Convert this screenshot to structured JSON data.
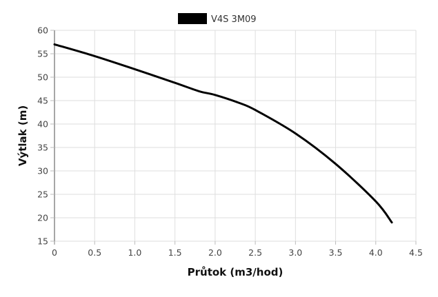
{
  "chart_data": {
    "type": "line",
    "title": "",
    "legend": {
      "position": "top",
      "entries": [
        "V4S 3M09"
      ]
    },
    "xlabel": "Průtok (m3/hod)",
    "ylabel": "Výtlak (m)",
    "xlim": [
      0,
      4.5
    ],
    "ylim": [
      15,
      60
    ],
    "grid": true,
    "x_ticks": [
      "0",
      "0.5",
      "1.0",
      "1.5",
      "2.0",
      "2.5",
      "3.0",
      "3.5",
      "4.0",
      "4.5"
    ],
    "y_ticks": [
      "15",
      "20",
      "25",
      "30",
      "35",
      "40",
      "45",
      "50",
      "55",
      "60"
    ],
    "series": [
      {
        "name": "V4S 3M09",
        "color": "#000000",
        "x": [
          0,
          0.5,
          1.0,
          1.5,
          1.8,
          2.0,
          2.3,
          2.5,
          3.0,
          3.5,
          4.0,
          4.2
        ],
        "values": [
          57,
          54.5,
          51.7,
          48.8,
          47,
          46.2,
          44.5,
          43,
          38,
          31.5,
          23.5,
          19
        ]
      }
    ]
  }
}
